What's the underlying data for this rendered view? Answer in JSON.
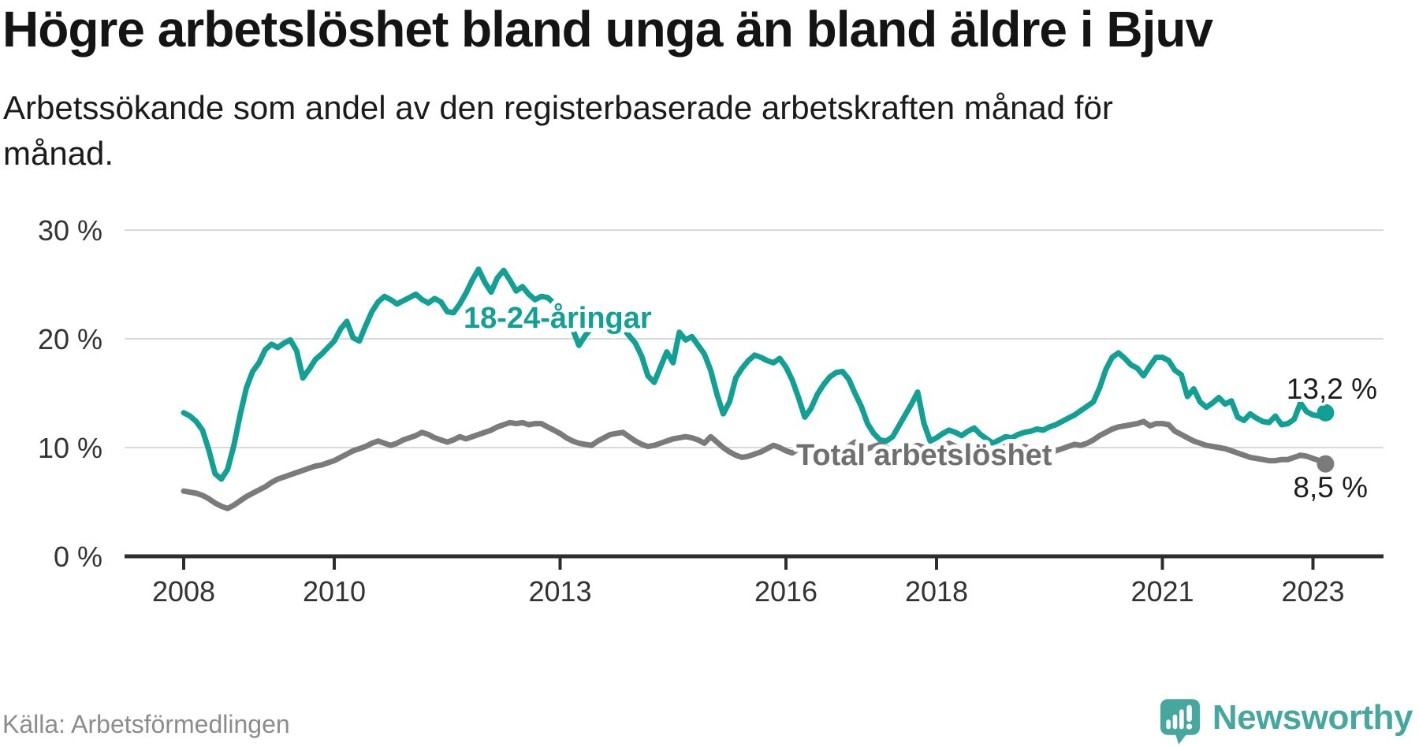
{
  "header": {
    "title": "Högre arbetslöshet bland unga än bland äldre i Bjuv",
    "subtitle": "Arbetssökande som andel av den registerbaserade arbetskraften månad för\nmånad."
  },
  "footer": {
    "source": "Källa: Arbetsförmedlingen",
    "brand": "Newsworthy"
  },
  "colors": {
    "youth_line": "#12a095",
    "total_line": "#7b7b7b",
    "total_label": "#6f6f6f",
    "grid": "#d9d9d9",
    "axis": "#2d2d2d",
    "brand_teal": "#45a79d"
  },
  "chart_data": {
    "type": "line",
    "title": "Högre arbetslöshet bland unga än bland äldre i Bjuv",
    "subtitle": "Arbetssökande som andel av den registerbaserade arbetskraften månad för månad.",
    "unit": "%",
    "start_month": "2008-01",
    "end_month": "2023-03",
    "months_per_point": 1,
    "ylim": [
      0,
      30
    ],
    "grid": "horizontal",
    "yticks": [
      {
        "label": "30 %",
        "value": 30
      },
      {
        "label": "20 %",
        "value": 20
      },
      {
        "label": "10 %",
        "value": 10
      },
      {
        "label": "0 %",
        "value": 0
      }
    ],
    "xticks": [
      {
        "label": "2008",
        "year": 2008
      },
      {
        "label": "2010",
        "year": 2010
      },
      {
        "label": "2013",
        "year": 2013
      },
      {
        "label": "2016",
        "year": 2016
      },
      {
        "label": "2018",
        "year": 2018
      },
      {
        "label": "2021",
        "year": 2021
      },
      {
        "label": "2023",
        "year": 2023
      }
    ],
    "series": [
      {
        "id": "youth",
        "label": "18-24-åringar",
        "color": "#12a095",
        "label_color": "#12a095",
        "end_label": "13,2 %",
        "end_value": 13.2,
        "values": [
          13.2,
          12.9,
          12.4,
          11.6,
          9.8,
          7.6,
          7.1,
          8.0,
          10.2,
          13.0,
          15.5,
          17.0,
          17.8,
          19.0,
          19.5,
          19.2,
          19.6,
          19.9,
          18.9,
          16.4,
          17.2,
          18.1,
          18.6,
          19.2,
          19.8,
          20.9,
          21.6,
          20.1,
          19.8,
          21.2,
          22.5,
          23.4,
          23.9,
          23.6,
          23.2,
          23.5,
          23.8,
          24.1,
          23.6,
          23.3,
          23.7,
          23.4,
          22.5,
          22.4,
          23.2,
          24.2,
          25.4,
          26.4,
          25.2,
          24.3,
          25.6,
          26.3,
          25.4,
          24.4,
          24.8,
          24.1,
          23.6,
          23.9,
          23.8,
          23.3,
          22.6,
          21.8,
          20.9,
          19.4,
          20.3,
          21.0,
          21.4,
          20.8,
          21.1,
          21.5,
          21.0,
          20.3,
          19.6,
          18.4,
          16.6,
          16.0,
          17.4,
          18.8,
          17.8,
          20.6,
          19.9,
          20.2,
          19.4,
          18.6,
          17.1,
          14.9,
          13.1,
          14.2,
          16.4,
          17.3,
          18.0,
          18.5,
          18.3,
          18.0,
          17.8,
          18.2,
          17.4,
          16.2,
          14.6,
          12.8,
          13.6,
          14.9,
          15.8,
          16.5,
          16.9,
          17.0,
          16.3,
          15.0,
          13.8,
          12.2,
          11.3,
          10.7,
          10.6,
          11.0,
          12.0,
          13.0,
          14.0,
          15.1,
          12.2,
          10.6,
          10.9,
          11.3,
          11.6,
          11.4,
          11.1,
          11.5,
          11.8,
          11.2,
          10.8,
          10.4,
          10.7,
          11.0,
          10.9,
          11.2,
          11.4,
          11.5,
          11.7,
          11.6,
          11.9,
          12.1,
          12.4,
          12.7,
          13.0,
          13.4,
          13.8,
          14.2,
          15.5,
          17.2,
          18.3,
          18.7,
          18.2,
          17.6,
          17.3,
          16.6,
          17.5,
          18.3,
          18.3,
          18.0,
          17.1,
          16.7,
          14.7,
          15.4,
          14.2,
          13.7,
          14.1,
          14.6,
          14.0,
          14.3,
          12.8,
          12.5,
          13.1,
          12.7,
          12.4,
          12.3,
          12.9,
          12.1,
          12.2,
          12.6,
          14.1,
          13.3,
          13.0,
          12.9,
          13.2
        ]
      },
      {
        "id": "total",
        "label": "Total arbetslöshet",
        "color": "#7b7b7b",
        "label_color": "#6f6f6f",
        "end_label": "8,5 %",
        "end_value": 8.5,
        "values": [
          6.0,
          5.9,
          5.8,
          5.6,
          5.3,
          4.9,
          4.6,
          4.4,
          4.7,
          5.1,
          5.5,
          5.8,
          6.1,
          6.4,
          6.8,
          7.1,
          7.3,
          7.5,
          7.7,
          7.9,
          8.1,
          8.3,
          8.4,
          8.6,
          8.8,
          9.1,
          9.4,
          9.7,
          9.9,
          10.1,
          10.4,
          10.6,
          10.4,
          10.2,
          10.4,
          10.7,
          10.9,
          11.1,
          11.4,
          11.2,
          10.9,
          10.7,
          10.5,
          10.7,
          11.0,
          10.8,
          11.0,
          11.2,
          11.4,
          11.6,
          11.9,
          12.1,
          12.3,
          12.2,
          12.3,
          12.1,
          12.2,
          12.2,
          11.9,
          11.6,
          11.3,
          10.9,
          10.6,
          10.4,
          10.3,
          10.2,
          10.6,
          10.9,
          11.2,
          11.3,
          11.4,
          11.0,
          10.6,
          10.3,
          10.1,
          10.2,
          10.4,
          10.6,
          10.8,
          10.9,
          11.0,
          10.9,
          10.7,
          10.4,
          11.0,
          10.5,
          10.0,
          9.6,
          9.3,
          9.1,
          9.2,
          9.4,
          9.6,
          9.9,
          10.2,
          10.0,
          9.7,
          9.5,
          9.9,
          10.2,
          10.0,
          9.7,
          9.4,
          9.6,
          9.9,
          9.7,
          10.1,
          10.5,
          10.2,
          9.9,
          10.1,
          10.3,
          10.0,
          9.7,
          9.5,
          9.8,
          10.0,
          10.2,
          10.0,
          9.8,
          10.0,
          10.2,
          10.4,
          10.1,
          9.9,
          9.6,
          9.4,
          9.3,
          9.5,
          9.7,
          9.9,
          10.1,
          10.0,
          9.8,
          10.1,
          9.9,
          9.8,
          10.0,
          9.9,
          9.7,
          9.9,
          10.1,
          10.3,
          10.2,
          10.4,
          10.7,
          11.1,
          11.4,
          11.7,
          11.9,
          12.0,
          12.1,
          12.2,
          12.4,
          12.0,
          12.2,
          12.2,
          12.1,
          11.5,
          11.2,
          10.9,
          10.6,
          10.4,
          10.2,
          10.1,
          10.0,
          9.9,
          9.7,
          9.5,
          9.3,
          9.1,
          9.0,
          8.9,
          8.8,
          8.8,
          8.9,
          8.9,
          9.1,
          9.3,
          9.2,
          9.0,
          8.8,
          8.5
        ]
      }
    ]
  }
}
